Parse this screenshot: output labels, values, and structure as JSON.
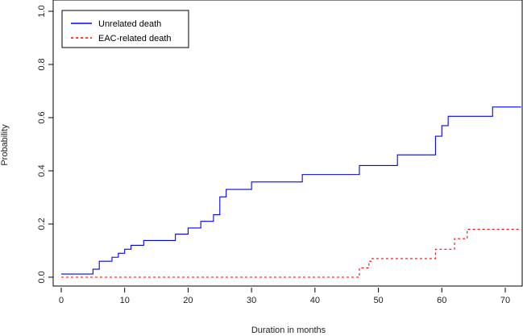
{
  "chart_data": {
    "type": "line",
    "xlabel": "Duration in months",
    "ylabel": "Probability",
    "xlim": [
      0,
      72.5
    ],
    "ylim": [
      0,
      1.0
    ],
    "x_ticks": [
      0,
      10,
      20,
      30,
      40,
      50,
      60,
      70
    ],
    "y_ticks": [
      "0.0",
      "0.2",
      "0.4",
      "0.6",
      "0.8",
      "1.0"
    ],
    "legend_position": "top-left",
    "grid": false,
    "series": [
      {
        "name": "Unrelated death",
        "color": "#0000ff",
        "style": "solid",
        "step": true,
        "x": [
          0,
          5,
          6,
          8,
          9,
          10,
          11,
          13,
          18,
          20,
          22,
          24,
          25,
          26,
          30,
          38,
          47,
          53,
          59,
          60,
          61,
          68,
          72.5
        ],
        "y": [
          0.012,
          0.03,
          0.06,
          0.075,
          0.09,
          0.105,
          0.12,
          0.138,
          0.162,
          0.185,
          0.21,
          0.235,
          0.302,
          0.33,
          0.358,
          0.386,
          0.42,
          0.46,
          0.53,
          0.57,
          0.605,
          0.64,
          0.64
        ]
      },
      {
        "name": "EAC-related death",
        "color": "#ff0000",
        "style": "dashed",
        "step": true,
        "x": [
          0,
          47,
          48.5,
          49,
          59,
          62,
          64,
          72.5
        ],
        "y": [
          0.0,
          0.035,
          0.06,
          0.07,
          0.105,
          0.145,
          0.18,
          0.18
        ]
      }
    ]
  }
}
